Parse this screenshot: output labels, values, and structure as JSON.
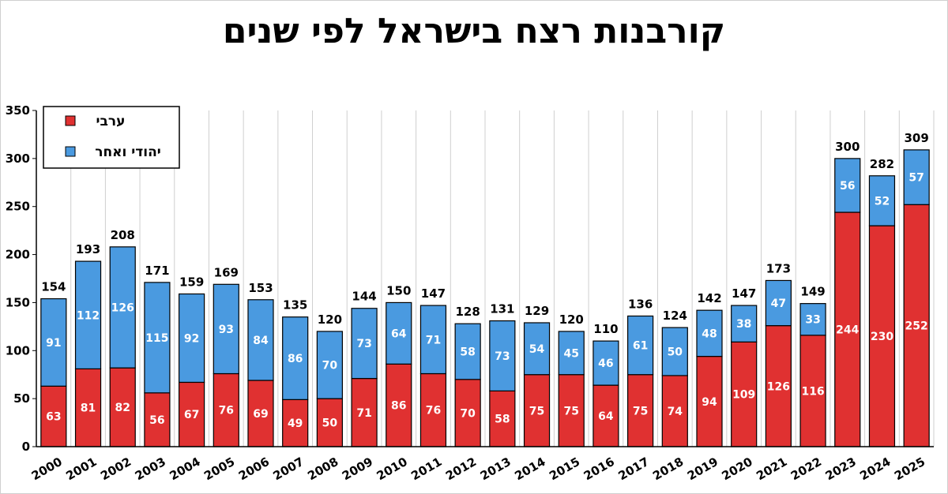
{
  "chart_data": {
    "type": "bar",
    "stacked": true,
    "title": "קורבנות רצח בישראל לפי שנים",
    "categories": [
      "2000",
      "2001",
      "2002",
      "2003",
      "2004",
      "2005",
      "2006",
      "2007",
      "2008",
      "2009",
      "2010",
      "2011",
      "2012",
      "2013",
      "2014",
      "2015",
      "2016",
      "2017",
      "2018",
      "2019",
      "2020",
      "2021",
      "2022",
      "2023",
      "2024",
      "2025"
    ],
    "series": [
      {
        "name": "ערבי",
        "color": "#e03131",
        "values": [
          63,
          81,
          82,
          56,
          67,
          76,
          69,
          49,
          50,
          71,
          86,
          76,
          70,
          58,
          75,
          75,
          64,
          75,
          74,
          94,
          109,
          126,
          116,
          244,
          230,
          252
        ]
      },
      {
        "name": "יהודי ואחר",
        "color": "#4a9ae0",
        "values": [
          91,
          112,
          126,
          115,
          92,
          93,
          84,
          86,
          70,
          73,
          64,
          71,
          58,
          73,
          54,
          45,
          46,
          61,
          50,
          48,
          38,
          47,
          33,
          56,
          52,
          57
        ]
      }
    ],
    "totals": [
      154,
      193,
      208,
      171,
      159,
      169,
      153,
      135,
      120,
      144,
      150,
      147,
      128,
      131,
      129,
      120,
      110,
      136,
      124,
      142,
      147,
      173,
      149,
      300,
      282,
      309
    ],
    "ylim": [
      0,
      350
    ],
    "yticks": [
      0,
      50,
      100,
      150,
      200,
      250,
      300,
      350
    ],
    "grid": "vertical",
    "legend": "top-left"
  }
}
